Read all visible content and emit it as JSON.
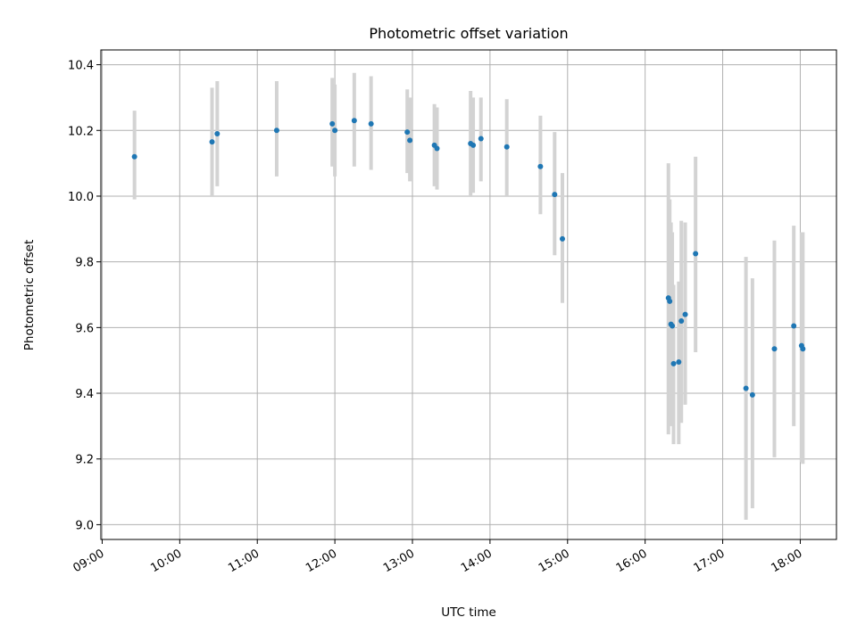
{
  "chart_data": {
    "type": "scatter",
    "title": "Photometric offset variation",
    "xlabel": "UTC time",
    "ylabel": "Photometric offset",
    "x_axis": "time",
    "xlim": [
      "08:59",
      "18:28"
    ],
    "ylim": [
      8.955,
      10.445
    ],
    "x_ticks": [
      "09:00",
      "10:00",
      "11:00",
      "12:00",
      "13:00",
      "14:00",
      "15:00",
      "16:00",
      "17:00",
      "18:00"
    ],
    "y_ticks": [
      9.0,
      9.2,
      9.4,
      9.6,
      9.8,
      10.0,
      10.2,
      10.4
    ],
    "grid": true,
    "point_color": "#1f77b4",
    "errorbar_color": "#d3d3d3",
    "points": [
      {
        "t": "09:25",
        "y": 10.12,
        "lo": 9.99,
        "hi": 10.26
      },
      {
        "t": "10:25",
        "y": 10.165,
        "lo": 10.0,
        "hi": 10.33
      },
      {
        "t": "10:29",
        "y": 10.19,
        "lo": 10.03,
        "hi": 10.35
      },
      {
        "t": "11:15",
        "y": 10.2,
        "lo": 10.06,
        "hi": 10.35
      },
      {
        "t": "11:58",
        "y": 10.22,
        "lo": 10.09,
        "hi": 10.36
      },
      {
        "t": "12:00",
        "y": 10.2,
        "lo": 10.06,
        "hi": 10.34
      },
      {
        "t": "12:15",
        "y": 10.23,
        "lo": 10.09,
        "hi": 10.375
      },
      {
        "t": "12:28",
        "y": 10.22,
        "lo": 10.08,
        "hi": 10.365
      },
      {
        "t": "12:56",
        "y": 10.195,
        "lo": 10.07,
        "hi": 10.325
      },
      {
        "t": "12:58",
        "y": 10.17,
        "lo": 10.045,
        "hi": 10.3
      },
      {
        "t": "13:17",
        "y": 10.155,
        "lo": 10.03,
        "hi": 10.28
      },
      {
        "t": "13:19",
        "y": 10.145,
        "lo": 10.02,
        "hi": 10.27
      },
      {
        "t": "13:45",
        "y": 10.16,
        "lo": 10.0,
        "hi": 10.32
      },
      {
        "t": "13:47",
        "y": 10.155,
        "lo": 10.01,
        "hi": 10.3
      },
      {
        "t": "13:53",
        "y": 10.175,
        "lo": 10.045,
        "hi": 10.3
      },
      {
        "t": "14:13",
        "y": 10.15,
        "lo": 10.0,
        "hi": 10.295
      },
      {
        "t": "14:39",
        "y": 10.09,
        "lo": 9.945,
        "hi": 10.245
      },
      {
        "t": "14:50",
        "y": 10.005,
        "lo": 9.82,
        "hi": 10.195
      },
      {
        "t": "14:56",
        "y": 9.87,
        "lo": 9.675,
        "hi": 10.07
      },
      {
        "t": "16:18",
        "y": 9.69,
        "lo": 9.275,
        "hi": 10.1
      },
      {
        "t": "16:19",
        "y": 9.68,
        "lo": 9.33,
        "hi": 9.99
      },
      {
        "t": "16:20",
        "y": 9.61,
        "lo": 9.3,
        "hi": 9.92
      },
      {
        "t": "16:21",
        "y": 9.605,
        "lo": 9.32,
        "hi": 9.89
      },
      {
        "t": "16:22",
        "y": 9.49,
        "lo": 9.245,
        "hi": 9.73
      },
      {
        "t": "16:26",
        "y": 9.495,
        "lo": 9.245,
        "hi": 9.74
      },
      {
        "t": "16:28",
        "y": 9.62,
        "lo": 9.31,
        "hi": 9.925
      },
      {
        "t": "16:31",
        "y": 9.64,
        "lo": 9.365,
        "hi": 9.92
      },
      {
        "t": "16:39",
        "y": 9.825,
        "lo": 9.525,
        "hi": 10.12
      },
      {
        "t": "17:18",
        "y": 9.415,
        "lo": 9.015,
        "hi": 9.815
      },
      {
        "t": "17:23",
        "y": 9.395,
        "lo": 9.05,
        "hi": 9.75
      },
      {
        "t": "17:40",
        "y": 9.535,
        "lo": 9.205,
        "hi": 9.865
      },
      {
        "t": "17:55",
        "y": 9.605,
        "lo": 9.3,
        "hi": 9.91
      },
      {
        "t": "18:01",
        "y": 9.545,
        "lo": 9.19,
        "hi": 9.89
      },
      {
        "t": "18:02",
        "y": 9.535,
        "lo": 9.185,
        "hi": 9.89
      }
    ]
  }
}
